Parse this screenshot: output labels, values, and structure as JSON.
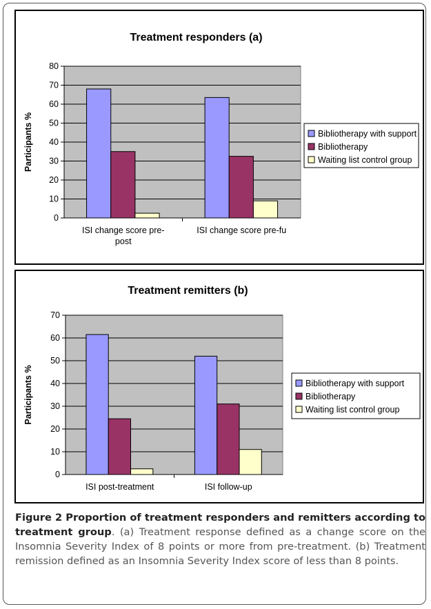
{
  "chart_data": [
    {
      "type": "bar",
      "title": "Treatment responders (a)",
      "ylabel": "Participants %",
      "xlabel": "",
      "ylim": [
        0,
        80
      ],
      "yticks": [
        0,
        10,
        20,
        30,
        40,
        50,
        60,
        70,
        80
      ],
      "categories": [
        [
          "ISI change score pre-",
          "post"
        ],
        [
          "ISI change score pre-fu"
        ]
      ],
      "series": [
        {
          "name": "Bibliotherapy with support",
          "color": "#9999ff",
          "values": [
            68,
            63.5
          ]
        },
        {
          "name": "Bibliotherapy",
          "color": "#993366",
          "values": [
            35,
            32.5
          ]
        },
        {
          "name": "Waiting list control group",
          "color": "#ffffcc",
          "values": [
            2.5,
            9
          ]
        }
      ],
      "grid": true,
      "legend": "right",
      "plot_bg": "#c0c0c0"
    },
    {
      "type": "bar",
      "title": "Treatment remitters (b)",
      "ylabel": "Participants %",
      "xlabel": "",
      "ylim": [
        0,
        70
      ],
      "yticks": [
        0,
        10,
        20,
        30,
        40,
        50,
        60,
        70
      ],
      "categories": [
        [
          "ISI post-treatment"
        ],
        [
          "ISI follow-up"
        ]
      ],
      "series": [
        {
          "name": "Bibliotherapy with support",
          "color": "#9999ff",
          "values": [
            61.5,
            52
          ]
        },
        {
          "name": "Bibliotherapy",
          "color": "#993366",
          "values": [
            24.5,
            31
          ]
        },
        {
          "name": "Waiting list control group",
          "color": "#ffffcc",
          "values": [
            2.5,
            11
          ]
        }
      ],
      "grid": true,
      "legend": "right",
      "plot_bg": "#c0c0c0"
    }
  ],
  "caption": {
    "label": "Figure 2 Proportion of treatment responders and remitters according to treatment group",
    "text": ". (a) Treatment response defined as a change score on the Insomnia Severity Index of 8 points or more from pre-treatment. (b) Treatment remission defined as an Insomnia Severity Index score of less than 8 points."
  }
}
